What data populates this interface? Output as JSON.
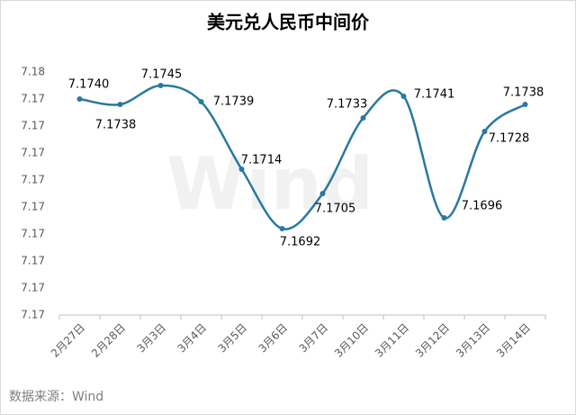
{
  "chart_data": {
    "type": "line",
    "title": "美元兑人民币中间价",
    "categories": [
      "2月27日",
      "2月28日",
      "3月3日",
      "3月4日",
      "3月5日",
      "3月6日",
      "3月7日",
      "3月10日",
      "3月11日",
      "3月12日",
      "3月13日",
      "3月14日"
    ],
    "series": [
      {
        "name": "美元兑人民币中间价",
        "color": "#2878a0",
        "values": [
          7.174,
          7.1738,
          7.1745,
          7.1739,
          7.1714,
          7.1692,
          7.1705,
          7.1733,
          7.1741,
          7.1696,
          7.1728,
          7.1738
        ],
        "value_labels": [
          "7.1740",
          "7.1738",
          "7.1745",
          "7.1739",
          "7.1714",
          "7.1692",
          "7.1705",
          "7.1733",
          "7.1741",
          "7.1696",
          "7.1728",
          "7.1738"
        ]
      }
    ],
    "ylim": [
      7.166,
      7.175
    ],
    "yticks": [
      {
        "value": 7.166,
        "label": "7.17"
      },
      {
        "value": 7.167,
        "label": "7.17"
      },
      {
        "value": 7.168,
        "label": "7.17"
      },
      {
        "value": 7.169,
        "label": "7.17"
      },
      {
        "value": 7.17,
        "label": "7.17"
      },
      {
        "value": 7.171,
        "label": "7.17"
      },
      {
        "value": 7.172,
        "label": "7.17"
      },
      {
        "value": 7.173,
        "label": "7.17"
      },
      {
        "value": 7.174,
        "label": "7.17"
      },
      {
        "value": 7.175,
        "label": "7.18"
      }
    ],
    "smooth": true,
    "grid": false,
    "watermark": "Wind",
    "source": "数据来源：Wind"
  }
}
